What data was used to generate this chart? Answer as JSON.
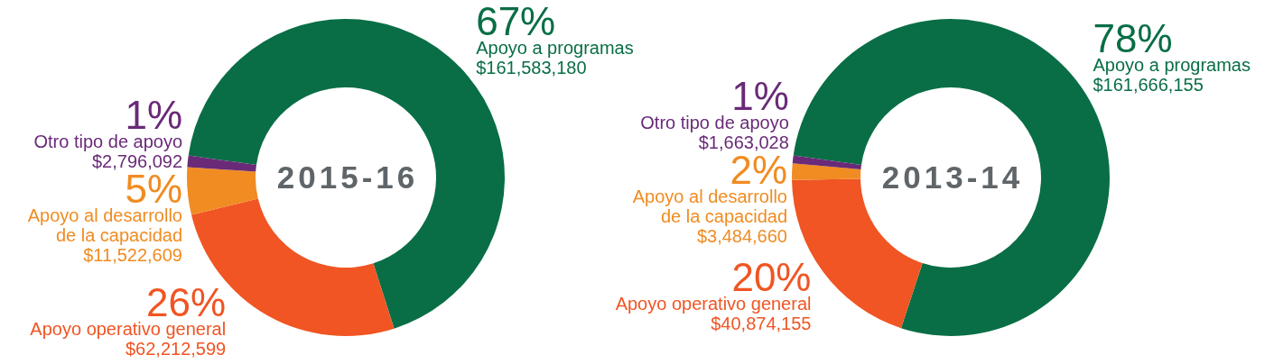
{
  "chart_data": [
    {
      "type": "donut",
      "title": "2015-16",
      "categories": [
        "Apoyo a programas",
        "Apoyo operativo general",
        "Apoyo al desarrollo de la capacidad",
        "Otro tipo de apoyo"
      ],
      "values": [
        161583180,
        62212599,
        11522609,
        2796092
      ],
      "colors": [
        "#096e45",
        "#f05523",
        "#f08c22",
        "#6a2a78"
      ],
      "value_labels": [
        "$161,583,180",
        "$62,212,599",
        "$11,522,609",
        "$2,796,092"
      ],
      "annotations": [
        {
          "text": "67%",
          "x": "Apoyo a programas"
        },
        {
          "text": "26%",
          "x": "Apoyo operativo general"
        },
        {
          "text": "5%",
          "x": "Apoyo al desarrollo de la capacidad"
        },
        {
          "text": "1%",
          "x": "Otro tipo de apoyo"
        }
      ]
    },
    {
      "type": "donut",
      "title": "2013-14",
      "categories": [
        "Apoyo a programas",
        "Apoyo operativo general",
        "Apoyo al desarrollo de la capacidad",
        "Otro tipo de apoyo"
      ],
      "values": [
        161666155,
        40874155,
        3484660,
        1663028
      ],
      "colors": [
        "#096e45",
        "#f05523",
        "#f08c22",
        "#6a2a78"
      ],
      "value_labels": [
        "$161,666,155",
        "$40,874,155",
        "$3,484,660",
        "$1,663,028"
      ],
      "annotations": [
        {
          "text": "78%",
          "x": "Apoyo a programas"
        },
        {
          "text": "20%",
          "x": "Apoyo operativo general"
        },
        {
          "text": "2%",
          "x": "Apoyo al desarrollo de la capacidad"
        },
        {
          "text": "1%",
          "x": "Otro tipo de apoyo"
        }
      ]
    }
  ]
}
